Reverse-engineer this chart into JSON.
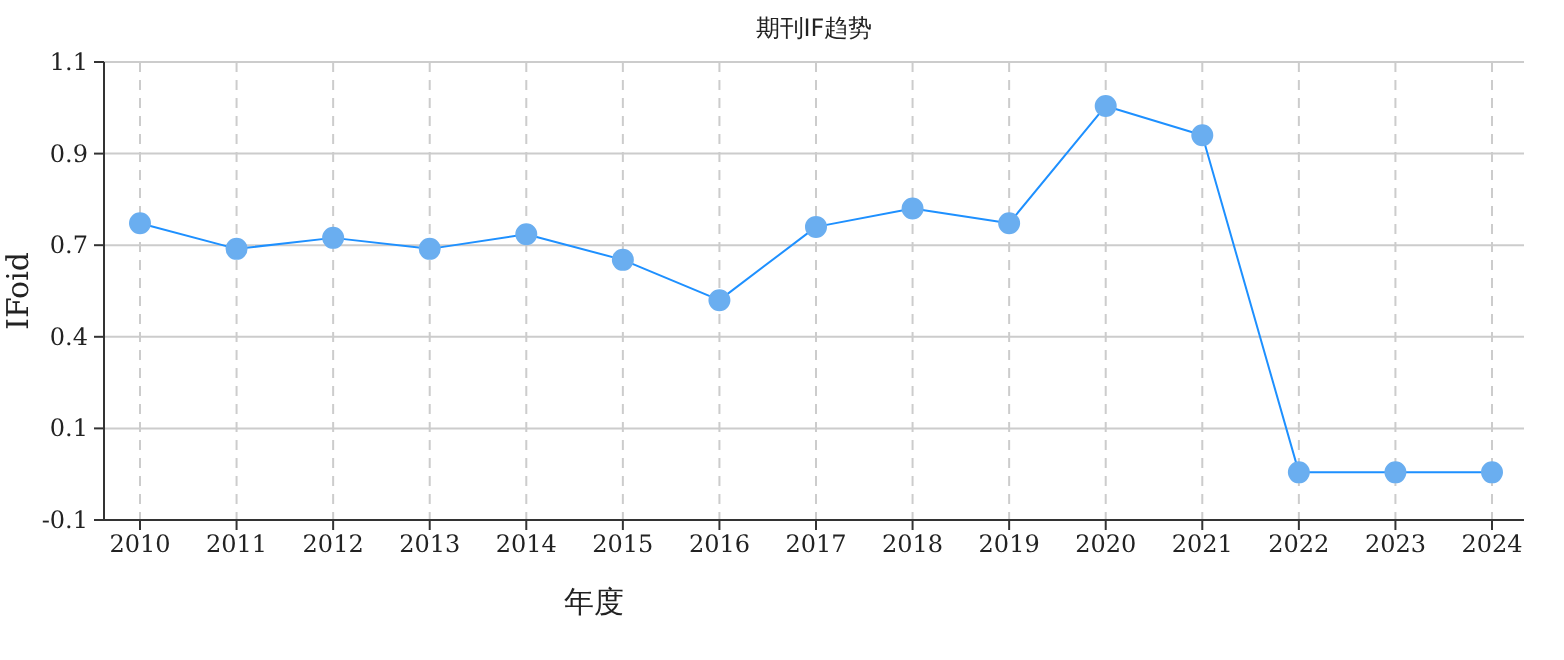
{
  "chart_data": {
    "type": "line",
    "title": "期刊IF趋势",
    "xlabel": "年度",
    "ylabel": "IFoid",
    "categories": [
      "2010",
      "2011",
      "2012",
      "2013",
      "2014",
      "2015",
      "2016",
      "2017",
      "2018",
      "2019",
      "2020",
      "2021",
      "2022",
      "2023",
      "2024"
    ],
    "series": [
      {
        "color": "#1e90ff",
        "values": [
          0.71,
          0.64,
          0.67,
          0.64,
          0.68,
          0.61,
          0.5,
          0.7,
          0.75,
          0.71,
          1.03,
          0.95,
          0.03,
          0.03,
          0.03
        ]
      }
    ],
    "ylim": [
      -0.1,
      1.15
    ],
    "yticks": [
      -0.1,
      {
        "value": 0.15,
        "label": "0.1"
      },
      0.4,
      {
        "value": 0.65,
        "label": "0.7"
      },
      0.9,
      {
        "value": 1.15,
        "label": "1.1"
      }
    ],
    "grid": true,
    "marker": "circle",
    "line_style": "solid"
  }
}
